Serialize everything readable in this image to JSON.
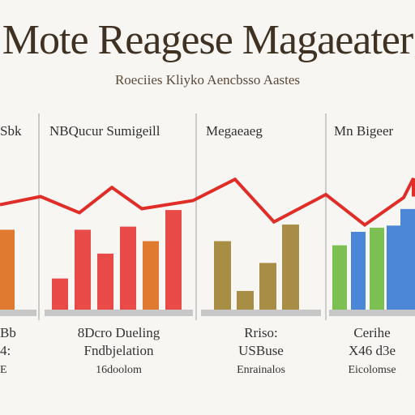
{
  "title": "Mote Reagese Magaeater",
  "subtitle": "Roeciies Kliyko Aencbsso Aastes",
  "colors": {
    "line": "#e02d28",
    "orange": "#e07a30",
    "red": "#e84a48",
    "olive": "#a88d45",
    "green": "#7cbf52",
    "blue": "#4c86d6",
    "divider": "#bbbbbb",
    "baseline": "#c7c7c7"
  },
  "chart_data": {
    "type": "bar",
    "ylim": [
      0,
      100
    ],
    "panels": [
      {
        "heading": "Sbk",
        "bars": [
          {
            "value": 77,
            "color": "orange"
          }
        ],
        "notes": [
          "Bb",
          "4:",
          "E"
        ]
      },
      {
        "heading": "NBQucur Sumigeill",
        "bars": [
          {
            "value": 30,
            "color": "red"
          },
          {
            "value": 77,
            "color": "red"
          },
          {
            "value": 54,
            "color": "red"
          },
          {
            "value": 80,
            "color": "red"
          },
          {
            "value": 66,
            "color": "orange"
          },
          {
            "value": 96,
            "color": "red"
          }
        ],
        "notes": [
          "8Dcro Dueling",
          "Fndbjelation",
          "16doolom"
        ]
      },
      {
        "heading": "Megaeaeg",
        "bars": [
          {
            "value": 66,
            "color": "olive"
          },
          {
            "value": 18,
            "color": "olive"
          },
          {
            "value": 45,
            "color": "olive"
          },
          {
            "value": 82,
            "color": "olive"
          }
        ],
        "notes": [
          "Rriso:",
          "USBuse",
          "Enrainalos"
        ]
      },
      {
        "heading": "Mn Bigeer",
        "bars": [
          {
            "value": 62,
            "color": "green"
          },
          {
            "value": 75,
            "color": "blue"
          },
          {
            "value": 79,
            "color": "green"
          },
          {
            "value": 81,
            "color": "blue"
          },
          {
            "value": 97,
            "color": "blue"
          }
        ],
        "notes": [
          "Cerihe",
          "X46 d3e",
          "Eicolomse"
        ]
      }
    ],
    "trend": [
      38,
      30,
      46,
      21,
      42,
      34,
      13,
      55,
      28,
      58,
      31,
      12,
      30
    ]
  }
}
